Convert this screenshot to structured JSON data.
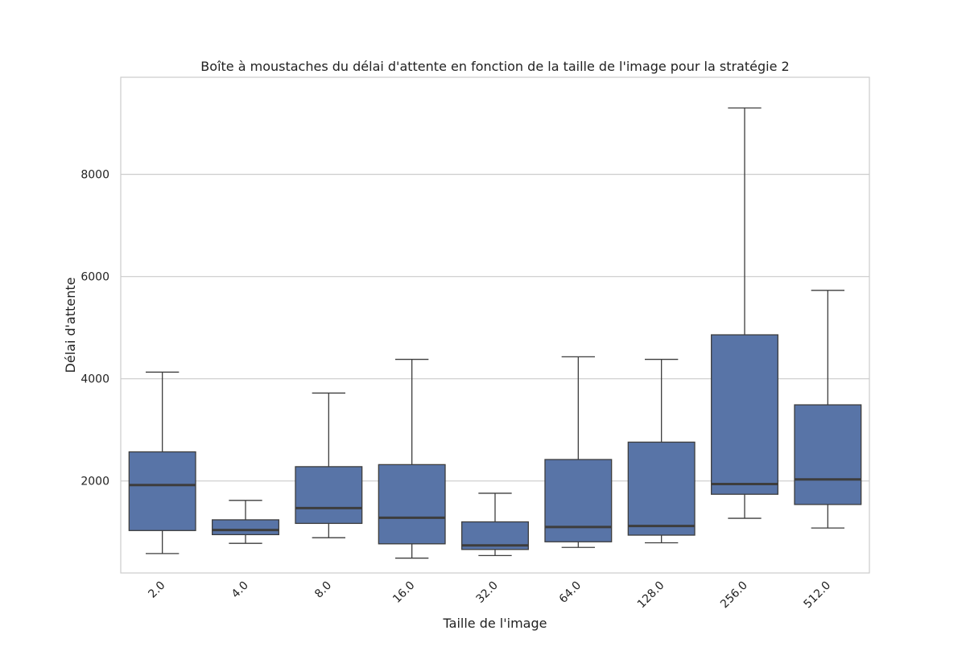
{
  "chart_data": {
    "type": "box",
    "title": "Boîte à moustaches du délai d'attente en fonction de la taille de l'image pour la stratégie 2",
    "xlabel": "Taille de l'image",
    "ylabel": "Délai d'attente",
    "categories": [
      "2.0",
      "4.0",
      "8.0",
      "16.0",
      "32.0",
      "64.0",
      "128.0",
      "256.0",
      "512.0"
    ],
    "boxes": [
      {
        "whisker_low": 580,
        "q1": 1030,
        "median": 1920,
        "q3": 2570,
        "whisker_high": 4130
      },
      {
        "whisker_low": 780,
        "q1": 950,
        "median": 1040,
        "q3": 1240,
        "whisker_high": 1620
      },
      {
        "whisker_low": 890,
        "q1": 1170,
        "median": 1470,
        "q3": 2280,
        "whisker_high": 3720
      },
      {
        "whisker_low": 490,
        "q1": 770,
        "median": 1280,
        "q3": 2320,
        "whisker_high": 4380
      },
      {
        "whisker_low": 540,
        "q1": 660,
        "median": 740,
        "q3": 1200,
        "whisker_high": 1760
      },
      {
        "whisker_low": 700,
        "q1": 810,
        "median": 1100,
        "q3": 2420,
        "whisker_high": 4430
      },
      {
        "whisker_low": 790,
        "q1": 940,
        "median": 1120,
        "q3": 2760,
        "whisker_high": 4380
      },
      {
        "whisker_low": 1270,
        "q1": 1740,
        "median": 1940,
        "q3": 4860,
        "whisker_high": 9300
      },
      {
        "whisker_low": 1080,
        "q1": 1540,
        "median": 2030,
        "q3": 3490,
        "whisker_high": 5730
      }
    ],
    "yticks": [
      2000,
      4000,
      6000,
      8000
    ],
    "ylim": [
      200,
      9900
    ],
    "grid": "horizontal",
    "box_color": "#5874a7",
    "line_color": "#3d3d3d",
    "grid_color": "#cccccc",
    "frame_color": "#cccccc"
  }
}
